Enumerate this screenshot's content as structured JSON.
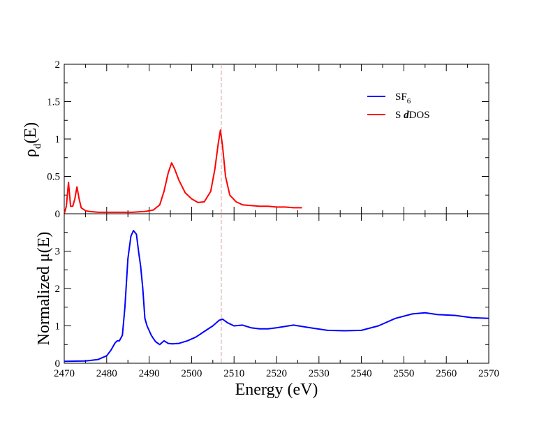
{
  "chart_data": [
    {
      "type": "line",
      "panel": "top",
      "ylabel": {
        "main": "ρ",
        "sub": "d",
        "tail": "(E)"
      },
      "xlim": [
        2470,
        2570
      ],
      "ylim": [
        0,
        2
      ],
      "yticks": [
        0,
        0.5,
        1,
        1.5,
        2
      ],
      "ytick_labels": [
        "0",
        "0.5",
        "1",
        "1.5",
        "2"
      ],
      "legend_placement": "top-right",
      "reference_line": {
        "x": 2507,
        "color": "#d9a0a0",
        "style": "dashed"
      },
      "series": [
        {
          "name": "S dDOS",
          "color": "#ff0000",
          "x": [
            2470,
            2470.5,
            2471,
            2471.5,
            2472,
            2472.5,
            2473,
            2473.5,
            2474,
            2475,
            2476,
            2478,
            2480,
            2483,
            2486,
            2489,
            2491,
            2492.5,
            2493.5,
            2494.5,
            2495.3,
            2496,
            2497,
            2498.5,
            2500,
            2501.5,
            2503,
            2504.5,
            2505.5,
            2506.3,
            2506.8,
            2507.3,
            2508,
            2509,
            2510.5,
            2512,
            2514,
            2516,
            2518,
            2520,
            2522,
            2524,
            2526
          ],
          "y": [
            0.0,
            0.1,
            0.42,
            0.1,
            0.1,
            0.2,
            0.36,
            0.2,
            0.08,
            0.04,
            0.03,
            0.02,
            0.02,
            0.02,
            0.02,
            0.03,
            0.05,
            0.12,
            0.3,
            0.55,
            0.68,
            0.6,
            0.45,
            0.28,
            0.2,
            0.15,
            0.16,
            0.3,
            0.6,
            0.95,
            1.12,
            0.9,
            0.5,
            0.25,
            0.16,
            0.12,
            0.11,
            0.1,
            0.1,
            0.09,
            0.09,
            0.08,
            0.08
          ]
        }
      ]
    },
    {
      "type": "line",
      "panel": "bottom",
      "xlabel": "Energy (eV)",
      "ylabel": {
        "main": "Normalized μ(E)"
      },
      "xlim": [
        2470,
        2570
      ],
      "ylim": [
        0,
        4
      ],
      "xticks": [
        2470,
        2480,
        2490,
        2500,
        2510,
        2520,
        2530,
        2540,
        2550,
        2560,
        2570
      ],
      "xtick_labels": [
        "2470",
        "2480",
        "2490",
        "2500",
        "2510",
        "2520",
        "2530",
        "2540",
        "2550",
        "2560",
        "2570"
      ],
      "yticks": [
        0,
        1,
        2,
        3
      ],
      "ytick_labels": [
        "0",
        "1",
        "2",
        "3"
      ],
      "reference_line": {
        "x": 2507,
        "color": "#d9a0a0",
        "style": "dashed"
      },
      "series": [
        {
          "name": "SF6",
          "color": "#0000ff",
          "x": [
            2470,
            2475,
            2478,
            2480,
            2481,
            2482,
            2482.5,
            2483,
            2483.7,
            2484.3,
            2485,
            2485.7,
            2486.3,
            2487,
            2487.5,
            2488,
            2488.5,
            2489,
            2489.5,
            2490.5,
            2491.5,
            2492.5,
            2493.5,
            2494.5,
            2495.5,
            2497,
            2499,
            2501,
            2503,
            2505,
            2506.5,
            2507.3,
            2508.5,
            2510,
            2512,
            2514,
            2516,
            2518,
            2520,
            2524,
            2528,
            2532,
            2536,
            2540,
            2544,
            2548,
            2552,
            2555,
            2558,
            2562,
            2566,
            2570
          ],
          "y": [
            0.05,
            0.06,
            0.1,
            0.2,
            0.35,
            0.55,
            0.6,
            0.6,
            0.75,
            1.5,
            2.8,
            3.4,
            3.55,
            3.45,
            3.0,
            2.6,
            2.0,
            1.2,
            1.0,
            0.75,
            0.58,
            0.5,
            0.6,
            0.53,
            0.52,
            0.53,
            0.6,
            0.7,
            0.85,
            1.0,
            1.15,
            1.18,
            1.08,
            1.0,
            1.02,
            0.95,
            0.92,
            0.92,
            0.95,
            1.02,
            0.95,
            0.88,
            0.87,
            0.88,
            1.0,
            1.2,
            1.32,
            1.35,
            1.3,
            1.28,
            1.22,
            1.2
          ]
        }
      ]
    }
  ],
  "legend": [
    {
      "name": "SF6",
      "text_main": "SF",
      "text_sub": "6",
      "color": "#0000ff"
    },
    {
      "name": "S dDOS",
      "text_pre": "S ",
      "text_bold": "d",
      "text_post": "DOS",
      "color": "#ff0000"
    }
  ]
}
